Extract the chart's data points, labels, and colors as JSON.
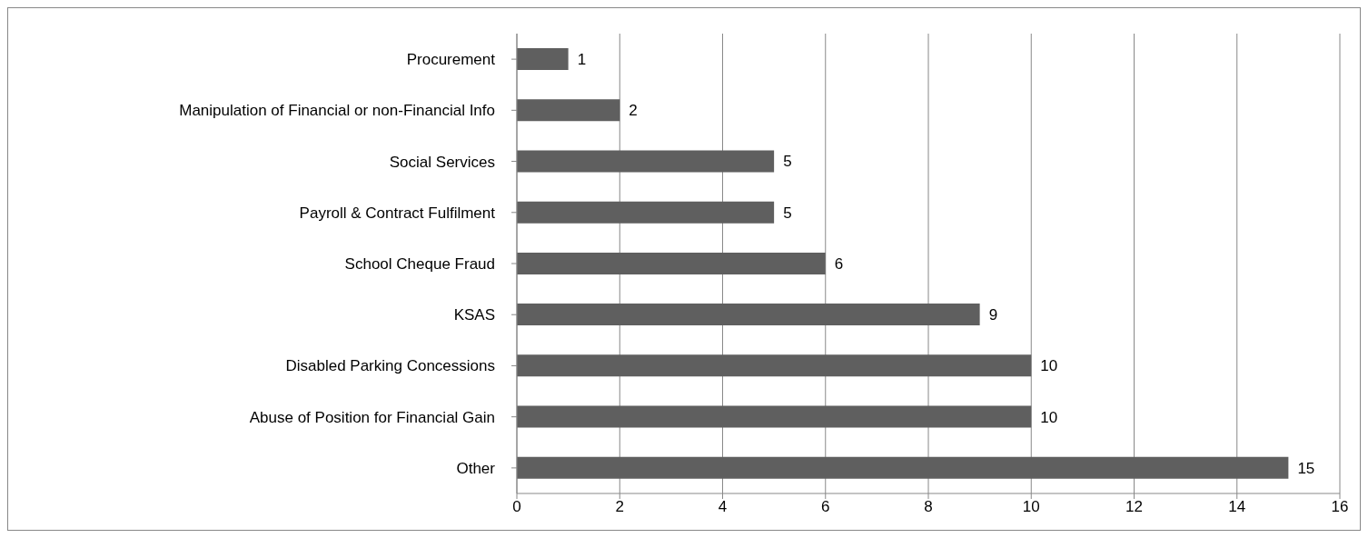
{
  "chart_data": {
    "type": "bar",
    "orientation": "horizontal",
    "categories": [
      "Procurement",
      "Manipulation of Financial or non-Financial Info",
      "Social Services",
      "Payroll & Contract Fulfilment",
      "School Cheque Fraud",
      "KSAS",
      "Disabled Parking Concessions",
      "Abuse of Position for Financial Gain",
      "Other"
    ],
    "values": [
      1,
      2,
      5,
      5,
      6,
      9,
      10,
      10,
      15
    ],
    "color": "#5f5f5f",
    "xlim": [
      0,
      16
    ],
    "xticks": [
      0,
      2,
      4,
      6,
      8,
      10,
      12,
      14,
      16
    ],
    "grid": "x",
    "data_labels": true
  }
}
